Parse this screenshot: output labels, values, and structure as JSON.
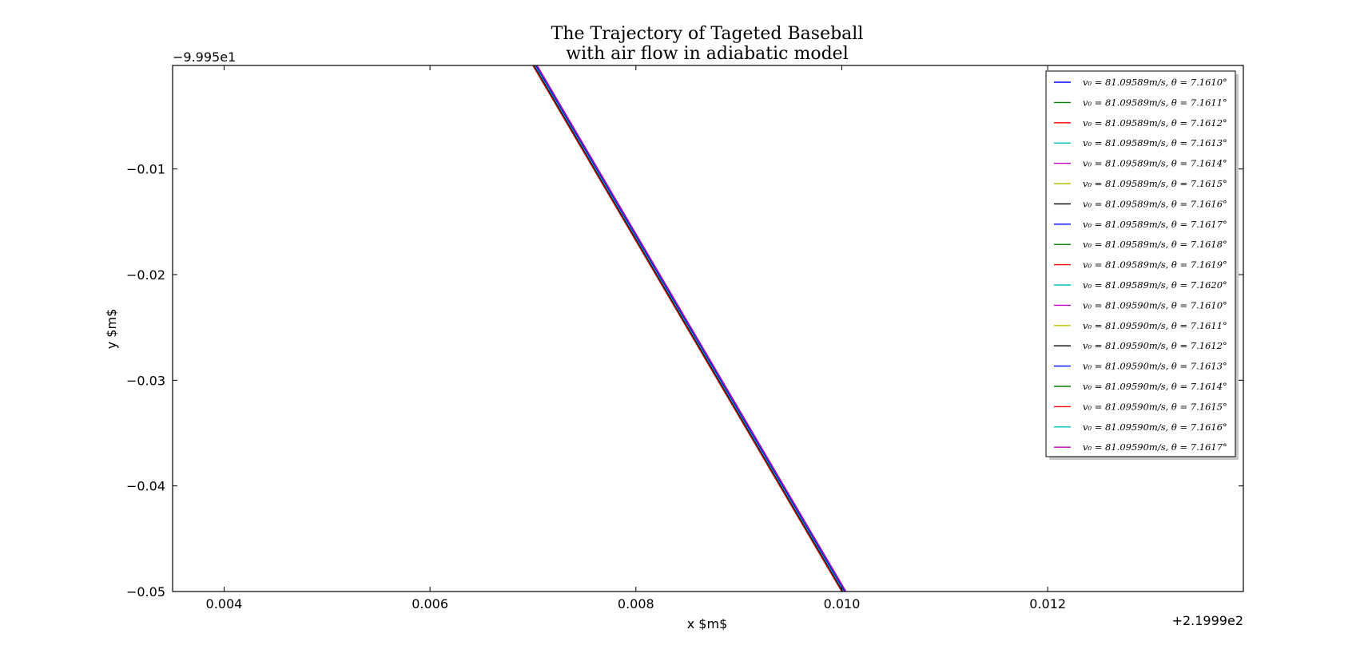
{
  "chart_data": {
    "type": "line",
    "title": "The Trajectory of Tageted Baseball",
    "subtitle": "with air flow in adiabatic model",
    "xlabel": "x $m$",
    "ylabel": "y $m$",
    "x_offset_label": "+2.1999e2",
    "y_offset_label": "−9.995e1",
    "x_offset": 219.99,
    "y_offset": -99.95,
    "xlim": [
      0.0035,
      0.0139
    ],
    "ylim": [
      -0.05,
      -0.0002
    ],
    "x_ticks": [
      0.004,
      0.006,
      0.008,
      0.01,
      0.012
    ],
    "x_tick_labels": [
      "0.004",
      "0.006",
      "0.008",
      "0.010",
      "0.012"
    ],
    "y_ticks": [
      -0.01,
      -0.02,
      -0.03,
      -0.04,
      -0.05
    ],
    "y_tick_labels": [
      "−0.01",
      "−0.02",
      "−0.03",
      "−0.04",
      "−0.05"
    ],
    "grid": false,
    "legend_position": "upper right",
    "series": [
      {
        "name": "v₀ = 81.09589m/s, θ = 7.1610°",
        "color": "#0000ff",
        "x": [
          0.007,
          0.01
        ],
        "y": [
          -0.0002,
          -0.05
        ]
      },
      {
        "name": "v₀ = 81.09589m/s, θ = 7.1611°",
        "color": "#008000",
        "x": [
          0.007,
          0.01
        ],
        "y": [
          -0.0002,
          -0.05
        ]
      },
      {
        "name": "v₀ = 81.09589m/s, θ = 7.1612°",
        "color": "#ff0000",
        "x": [
          0.007,
          0.01
        ],
        "y": [
          -0.0002,
          -0.05
        ]
      },
      {
        "name": "v₀ = 81.09589m/s, θ = 7.1613°",
        "color": "#00bfbf",
        "x": [
          0.00701,
          0.01001
        ],
        "y": [
          -0.0002,
          -0.05
        ]
      },
      {
        "name": "v₀ = 81.09589m/s, θ = 7.1614°",
        "color": "#bf00bf",
        "x": [
          0.00701,
          0.01001
        ],
        "y": [
          -0.0002,
          -0.05
        ]
      },
      {
        "name": "v₀ = 81.09589m/s, θ = 7.1615°",
        "color": "#bfbf00",
        "x": [
          0.00701,
          0.01001
        ],
        "y": [
          -0.0002,
          -0.05
        ]
      },
      {
        "name": "v₀ = 81.09589m/s, θ = 7.1616°",
        "color": "#000000",
        "x": [
          0.00701,
          0.01001
        ],
        "y": [
          -0.0002,
          -0.05
        ]
      },
      {
        "name": "v₀ = 81.09589m/s, θ = 7.1617°",
        "color": "#0000ff",
        "x": [
          0.00702,
          0.01002
        ],
        "y": [
          -0.0002,
          -0.05
        ]
      },
      {
        "name": "v₀ = 81.09589m/s, θ = 7.1618°",
        "color": "#008000",
        "x": [
          0.00702,
          0.01002
        ],
        "y": [
          -0.0002,
          -0.05
        ]
      },
      {
        "name": "v₀ = 81.09589m/s, θ = 7.1619°",
        "color": "#ff0000",
        "x": [
          0.00702,
          0.01002
        ],
        "y": [
          -0.0002,
          -0.05
        ]
      },
      {
        "name": "v₀ = 81.09589m/s, θ = 7.1620°",
        "color": "#00bfbf",
        "x": [
          0.00702,
          0.01002
        ],
        "y": [
          -0.0002,
          -0.05
        ]
      },
      {
        "name": "v₀ = 81.09590m/s, θ = 7.1610°",
        "color": "#bf00bf",
        "x": [
          0.00703,
          0.01003
        ],
        "y": [
          -0.0002,
          -0.05
        ]
      },
      {
        "name": "v₀ = 81.09590m/s, θ = 7.1611°",
        "color": "#bfbf00",
        "x": [
          0.00703,
          0.01003
        ],
        "y": [
          -0.0002,
          -0.05
        ]
      },
      {
        "name": "v₀ = 81.09590m/s, θ = 7.1612°",
        "color": "#000000",
        "x": [
          0.00703,
          0.01003
        ],
        "y": [
          -0.0002,
          -0.05
        ]
      },
      {
        "name": "v₀ = 81.09590m/s, θ = 7.1613°",
        "color": "#0000ff",
        "x": [
          0.00703,
          0.01003
        ],
        "y": [
          -0.0002,
          -0.05
        ]
      },
      {
        "name": "v₀ = 81.09590m/s, θ = 7.1614°",
        "color": "#008000",
        "x": [
          0.00704,
          0.01004
        ],
        "y": [
          -0.0002,
          -0.05
        ]
      },
      {
        "name": "v₀ = 81.09590m/s, θ = 7.1615°",
        "color": "#ff0000",
        "x": [
          0.00704,
          0.01004
        ],
        "y": [
          -0.0002,
          -0.05
        ]
      },
      {
        "name": "v₀ = 81.09590m/s, θ = 7.1616°",
        "color": "#00bfbf",
        "x": [
          0.00704,
          0.01004
        ],
        "y": [
          -0.0002,
          -0.05
        ]
      },
      {
        "name": "v₀ = 81.09590m/s, θ = 7.1617°",
        "color": "#bf00bf",
        "x": [
          0.00704,
          0.01004
        ],
        "y": [
          -0.0002,
          -0.05
        ]
      }
    ]
  }
}
